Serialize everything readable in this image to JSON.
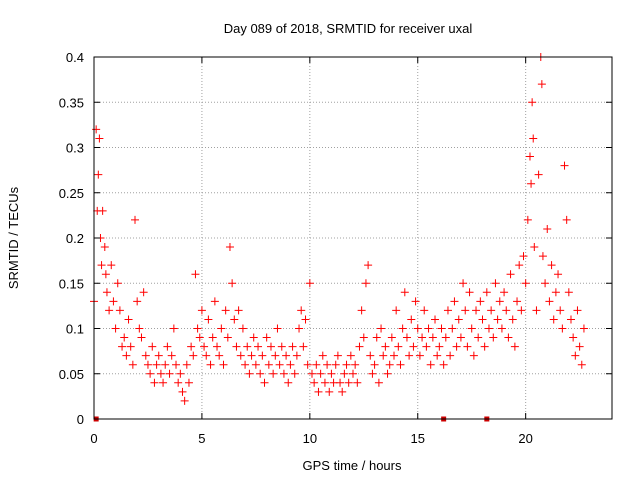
{
  "chart_data": {
    "type": "scatter",
    "title": "Day 089 of 2018, SRMTID for receiver uxal",
    "xlabel": "GPS time / hours",
    "ylabel": "SRMTID / TECUs",
    "xlim": [
      0,
      24
    ],
    "ylim": [
      0,
      0.4
    ],
    "xticks": [
      "0",
      "5",
      "10",
      "15",
      "20"
    ],
    "yticks": [
      "0",
      "0.05",
      "0.1",
      "0.15",
      "0.2",
      "0.25",
      "0.3",
      "0.35",
      "0.4"
    ],
    "grid": true,
    "marker": "plus",
    "color": "#ff0000",
    "series": [
      {
        "name": "SRMTID",
        "points": [
          [
            0.0,
            0.13
          ],
          [
            0.1,
            0.32
          ],
          [
            0.15,
            0.23
          ],
          [
            0.2,
            0.27
          ],
          [
            0.25,
            0.31
          ],
          [
            0.3,
            0.2
          ],
          [
            0.35,
            0.17
          ],
          [
            0.4,
            0.23
          ],
          [
            0.5,
            0.19
          ],
          [
            0.55,
            0.16
          ],
          [
            0.6,
            0.14
          ],
          [
            0.7,
            0.12
          ],
          [
            0.8,
            0.17
          ],
          [
            0.9,
            0.13
          ],
          [
            1.0,
            0.1
          ],
          [
            1.1,
            0.15
          ],
          [
            1.2,
            0.12
          ],
          [
            1.3,
            0.08
          ],
          [
            1.4,
            0.09
          ],
          [
            1.5,
            0.07
          ],
          [
            1.6,
            0.11
          ],
          [
            1.7,
            0.08
          ],
          [
            1.8,
            0.06
          ],
          [
            1.9,
            0.22
          ],
          [
            2.0,
            0.13
          ],
          [
            2.1,
            0.1
          ],
          [
            2.2,
            0.09
          ],
          [
            2.3,
            0.14
          ],
          [
            2.4,
            0.07
          ],
          [
            2.5,
            0.06
          ],
          [
            2.6,
            0.05
          ],
          [
            2.7,
            0.08
          ],
          [
            2.8,
            0.04
          ],
          [
            2.9,
            0.06
          ],
          [
            3.0,
            0.07
          ],
          [
            3.1,
            0.05
          ],
          [
            3.2,
            0.04
          ],
          [
            3.3,
            0.06
          ],
          [
            3.4,
            0.08
          ],
          [
            3.5,
            0.05
          ],
          [
            3.6,
            0.07
          ],
          [
            3.7,
            0.1
          ],
          [
            3.8,
            0.06
          ],
          [
            3.9,
            0.04
          ],
          [
            4.0,
            0.05
          ],
          [
            4.1,
            0.03
          ],
          [
            4.2,
            0.02
          ],
          [
            4.3,
            0.06
          ],
          [
            4.4,
            0.04
          ],
          [
            4.5,
            0.08
          ],
          [
            4.6,
            0.07
          ],
          [
            4.7,
            0.16
          ],
          [
            4.8,
            0.1
          ],
          [
            4.9,
            0.09
          ],
          [
            5.0,
            0.12
          ],
          [
            5.1,
            0.08
          ],
          [
            5.2,
            0.07
          ],
          [
            5.3,
            0.11
          ],
          [
            5.4,
            0.06
          ],
          [
            5.5,
            0.09
          ],
          [
            5.6,
            0.13
          ],
          [
            5.7,
            0.08
          ],
          [
            5.8,
            0.07
          ],
          [
            5.9,
            0.1
          ],
          [
            6.0,
            0.06
          ],
          [
            6.1,
            0.12
          ],
          [
            6.2,
            0.09
          ],
          [
            6.3,
            0.19
          ],
          [
            6.4,
            0.15
          ],
          [
            6.5,
            0.11
          ],
          [
            6.6,
            0.08
          ],
          [
            6.7,
            0.12
          ],
          [
            6.8,
            0.07
          ],
          [
            6.9,
            0.1
          ],
          [
            7.0,
            0.06
          ],
          [
            7.1,
            0.08
          ],
          [
            7.2,
            0.05
          ],
          [
            7.3,
            0.07
          ],
          [
            7.4,
            0.09
          ],
          [
            7.5,
            0.06
          ],
          [
            7.6,
            0.08
          ],
          [
            7.7,
            0.05
          ],
          [
            7.8,
            0.07
          ],
          [
            7.9,
            0.04
          ],
          [
            8.0,
            0.09
          ],
          [
            8.1,
            0.06
          ],
          [
            8.2,
            0.08
          ],
          [
            8.3,
            0.05
          ],
          [
            8.4,
            0.07
          ],
          [
            8.5,
            0.1
          ],
          [
            8.6,
            0.06
          ],
          [
            8.7,
            0.08
          ],
          [
            8.8,
            0.05
          ],
          [
            8.9,
            0.07
          ],
          [
            9.0,
            0.04
          ],
          [
            9.1,
            0.06
          ],
          [
            9.2,
            0.08
          ],
          [
            9.3,
            0.05
          ],
          [
            9.4,
            0.07
          ],
          [
            9.5,
            0.1
          ],
          [
            9.6,
            0.12
          ],
          [
            9.7,
            0.08
          ],
          [
            9.8,
            0.11
          ],
          [
            9.9,
            0.06
          ],
          [
            10.0,
            0.15
          ],
          [
            10.1,
            0.05
          ],
          [
            10.2,
            0.04
          ],
          [
            10.3,
            0.06
          ],
          [
            10.4,
            0.03
          ],
          [
            10.5,
            0.05
          ],
          [
            10.6,
            0.07
          ],
          [
            10.7,
            0.04
          ],
          [
            10.8,
            0.06
          ],
          [
            10.9,
            0.03
          ],
          [
            11.0,
            0.05
          ],
          [
            11.1,
            0.04
          ],
          [
            11.2,
            0.06
          ],
          [
            11.3,
            0.07
          ],
          [
            11.4,
            0.04
          ],
          [
            11.5,
            0.03
          ],
          [
            11.6,
            0.05
          ],
          [
            11.7,
            0.06
          ],
          [
            11.8,
            0.04
          ],
          [
            11.9,
            0.07
          ],
          [
            12.0,
            0.05
          ],
          [
            12.1,
            0.06
          ],
          [
            12.2,
            0.04
          ],
          [
            12.3,
            0.08
          ],
          [
            12.4,
            0.12
          ],
          [
            12.5,
            0.09
          ],
          [
            12.6,
            0.15
          ],
          [
            12.7,
            0.17
          ],
          [
            12.8,
            0.07
          ],
          [
            12.9,
            0.05
          ],
          [
            13.0,
            0.06
          ],
          [
            13.1,
            0.09
          ],
          [
            13.2,
            0.04
          ],
          [
            13.3,
            0.1
          ],
          [
            13.4,
            0.07
          ],
          [
            13.5,
            0.08
          ],
          [
            13.6,
            0.05
          ],
          [
            13.7,
            0.06
          ],
          [
            13.8,
            0.09
          ],
          [
            13.9,
            0.07
          ],
          [
            14.0,
            0.12
          ],
          [
            14.1,
            0.08
          ],
          [
            14.2,
            0.06
          ],
          [
            14.3,
            0.1
          ],
          [
            14.4,
            0.14
          ],
          [
            14.5,
            0.09
          ],
          [
            14.6,
            0.07
          ],
          [
            14.7,
            0.11
          ],
          [
            14.8,
            0.08
          ],
          [
            14.9,
            0.13
          ],
          [
            15.0,
            0.1
          ],
          [
            15.1,
            0.07
          ],
          [
            15.2,
            0.09
          ],
          [
            15.3,
            0.12
          ],
          [
            15.4,
            0.08
          ],
          [
            15.5,
            0.1
          ],
          [
            15.6,
            0.06
          ],
          [
            15.7,
            0.09
          ],
          [
            15.8,
            0.11
          ],
          [
            15.9,
            0.07
          ],
          [
            16.0,
            0.08
          ],
          [
            16.1,
            0.1
          ],
          [
            16.2,
            0.06
          ],
          [
            16.3,
            0.09
          ],
          [
            16.4,
            0.12
          ],
          [
            16.5,
            0.07
          ],
          [
            16.6,
            0.1
          ],
          [
            16.7,
            0.13
          ],
          [
            16.8,
            0.08
          ],
          [
            16.9,
            0.11
          ],
          [
            17.0,
            0.09
          ],
          [
            17.1,
            0.15
          ],
          [
            17.2,
            0.12
          ],
          [
            17.3,
            0.08
          ],
          [
            17.4,
            0.14
          ],
          [
            17.5,
            0.1
          ],
          [
            17.6,
            0.07
          ],
          [
            17.7,
            0.12
          ],
          [
            17.8,
            0.09
          ],
          [
            17.9,
            0.13
          ],
          [
            18.0,
            0.11
          ],
          [
            18.1,
            0.08
          ],
          [
            18.2,
            0.14
          ],
          [
            18.3,
            0.1
          ],
          [
            18.4,
            0.12
          ],
          [
            18.5,
            0.09
          ],
          [
            18.6,
            0.15
          ],
          [
            18.7,
            0.11
          ],
          [
            18.8,
            0.13
          ],
          [
            18.9,
            0.1
          ],
          [
            19.0,
            0.14
          ],
          [
            19.1,
            0.12
          ],
          [
            19.2,
            0.09
          ],
          [
            19.3,
            0.16
          ],
          [
            19.4,
            0.11
          ],
          [
            19.5,
            0.08
          ],
          [
            19.6,
            0.13
          ],
          [
            19.7,
            0.17
          ],
          [
            19.8,
            0.12
          ],
          [
            19.9,
            0.18
          ],
          [
            20.0,
            0.15
          ],
          [
            20.1,
            0.22
          ],
          [
            20.2,
            0.29
          ],
          [
            20.25,
            0.26
          ],
          [
            20.3,
            0.35
          ],
          [
            20.35,
            0.31
          ],
          [
            20.4,
            0.19
          ],
          [
            20.5,
            0.12
          ],
          [
            20.6,
            0.27
          ],
          [
            20.7,
            0.4
          ],
          [
            20.75,
            0.37
          ],
          [
            20.8,
            0.18
          ],
          [
            20.9,
            0.15
          ],
          [
            21.0,
            0.21
          ],
          [
            21.1,
            0.13
          ],
          [
            21.2,
            0.17
          ],
          [
            21.3,
            0.11
          ],
          [
            21.4,
            0.14
          ],
          [
            21.5,
            0.16
          ],
          [
            21.6,
            0.12
          ],
          [
            21.7,
            0.1
          ],
          [
            21.8,
            0.28
          ],
          [
            21.9,
            0.22
          ],
          [
            22.0,
            0.14
          ],
          [
            22.1,
            0.11
          ],
          [
            22.2,
            0.09
          ],
          [
            22.3,
            0.07
          ],
          [
            22.4,
            0.12
          ],
          [
            22.5,
            0.08
          ],
          [
            22.6,
            0.06
          ],
          [
            22.7,
            0.1
          ]
        ]
      }
    ],
    "zero_markers": [
      0.1,
      16.2,
      18.2
    ]
  }
}
